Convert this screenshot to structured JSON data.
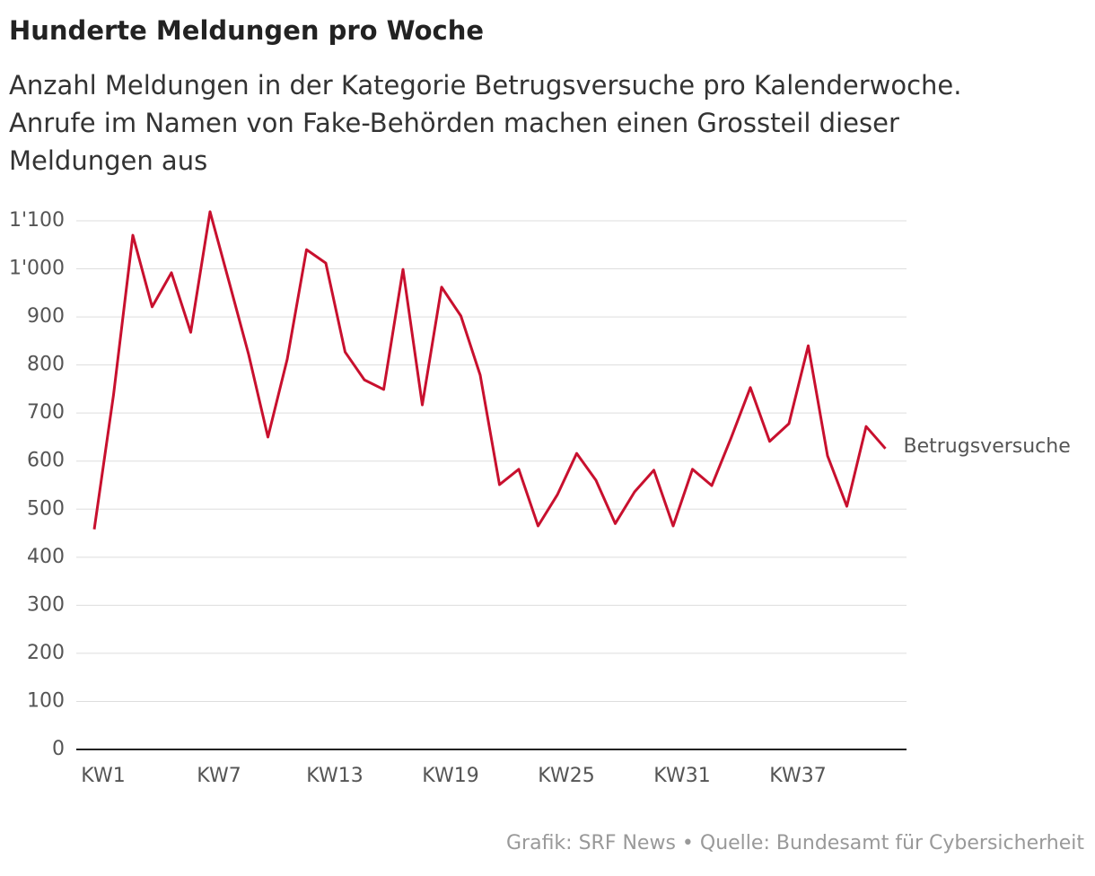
{
  "chart_data": {
    "type": "line",
    "title": "Hunderte Meldungen pro Woche",
    "subtitle": [
      "Anzahl Meldungen in der Kategorie Betrugsversuche pro Kalenderwoche.",
      "Anrufe im Namen von Fake-Behörden machen einen Grossteil dieser",
      "Meldungen aus"
    ],
    "source": "Grafik: SRF News • Quelle: Bundesamt für Cybersicherheit",
    "categories": [
      "KW1",
      null,
      null,
      null,
      null,
      null,
      "KW7",
      null,
      null,
      null,
      null,
      null,
      "KW13",
      null,
      null,
      null,
      null,
      null,
      "KW19",
      null,
      null,
      null,
      null,
      null,
      "KW25",
      null,
      null,
      null,
      null,
      null,
      "KW31",
      null,
      null,
      null,
      null,
      null,
      "KW37",
      null,
      null,
      null,
      null,
      null
    ],
    "series": [
      {
        "name": "Betrugsversuche",
        "color": "#c8102e",
        "values": [
          458,
          738,
          1070,
          921,
          992,
          868,
          1119,
          971,
          822,
          650,
          812,
          1040,
          1012,
          827,
          769,
          749,
          999,
          717,
          962,
          902,
          779,
          551,
          583,
          465,
          530,
          616,
          560,
          470,
          536,
          581,
          465,
          583,
          549,
          648,
          753,
          641,
          678,
          840,
          611,
          506,
          672,
          626
        ]
      }
    ],
    "ylim": [
      0,
      1100
    ],
    "yticks": [
      0,
      100,
      200,
      300,
      400,
      500,
      600,
      700,
      800,
      900,
      {
        "value": 1000,
        "label": "1'000"
      },
      {
        "value": 1100,
        "label": "1'100"
      }
    ],
    "grid": true
  }
}
